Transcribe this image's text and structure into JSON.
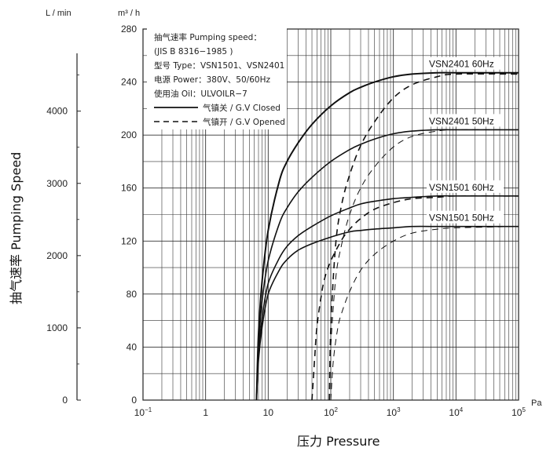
{
  "chart_data": {
    "type": "line",
    "x_scale": "log",
    "xlim": [
      0.1,
      100000
    ],
    "ylim": [
      0,
      280
    ],
    "grid": true,
    "x_unit": "Pa",
    "xlabel": "压力 Pressure",
    "ylabel": "抽气速率 Pumping Speed",
    "y_unit_left": "L / min",
    "y_unit_right": "m³ / h",
    "x_ticks": [
      {
        "value": 0.1,
        "base": "10",
        "exp": "−1"
      },
      {
        "value": 1,
        "base": "1",
        "exp": ""
      },
      {
        "value": 10,
        "base": "10",
        "exp": ""
      },
      {
        "value": 100,
        "base": "10",
        "exp": "2"
      },
      {
        "value": 1000,
        "base": "10",
        "exp": "3"
      },
      {
        "value": 10000,
        "base": "10",
        "exp": "4"
      },
      {
        "value": 100000,
        "base": "10",
        "exp": "5"
      }
    ],
    "y_ticks_m3h": [
      0,
      40,
      80,
      120,
      160,
      200,
      240,
      280
    ],
    "y_ticks_lmin": [
      0,
      1000,
      2000,
      3000,
      4000
    ],
    "y_lmin_max": 4800,
    "legend": {
      "position": "top-left",
      "lines": [
        "抽气速率 Pumping speed：",
        "(JIS B 8316−1985 )",
        "型号 Type：VSN1501、VSN2401",
        "电源 Power：380V、50/60Hz",
        "使用油 Oil：ULVOILR−7"
      ],
      "closed_label": "气镇关 / G.V Closed",
      "opened_label": "气镇开 / G.V Opened"
    },
    "series": [
      {
        "name": "VSN2401 60Hz",
        "ballast": "closed",
        "stroke": 2.0,
        "x": [
          6.5,
          7,
          8,
          10,
          15,
          20,
          30,
          50,
          100,
          200,
          300,
          500,
          1000,
          2000,
          5000,
          10000,
          100000
        ],
        "y": [
          0,
          50,
          90,
          128,
          165,
          180,
          194,
          208,
          222,
          232,
          236,
          240,
          244,
          246,
          247,
          247,
          247
        ]
      },
      {
        "name": "VSN2401 60Hz",
        "ballast": "opened",
        "stroke": 1.6,
        "x": [
          95,
          100,
          120,
          150,
          200,
          300,
          500,
          1000,
          2000,
          5000,
          10000,
          100000
        ],
        "y": [
          0,
          55,
          118,
          148,
          170,
          192,
          210,
          228,
          238,
          244,
          246,
          246
        ]
      },
      {
        "name": "VSN2401 50Hz",
        "ballast": "closed",
        "stroke": 1.6,
        "x": [
          6.5,
          7,
          8,
          10,
          15,
          20,
          30,
          50,
          100,
          200,
          300,
          500,
          1000,
          2000,
          5000,
          10000,
          100000
        ],
        "y": [
          0,
          40,
          75,
          105,
          133,
          145,
          157,
          168,
          180,
          189,
          193,
          197,
          201,
          203,
          204,
          204,
          204
        ]
      },
      {
        "name": "VSN2401 50Hz",
        "ballast": "opened",
        "stroke": 1.0,
        "x": [
          95,
          100,
          120,
          150,
          200,
          300,
          500,
          1000,
          2000,
          5000,
          10000,
          100000
        ],
        "y": [
          0,
          40,
          92,
          118,
          140,
          160,
          176,
          191,
          199,
          203,
          204,
          204
        ]
      },
      {
        "name": "VSN1501 60Hz",
        "ballast": "closed",
        "stroke": 1.6,
        "x": [
          6.5,
          7,
          8,
          10,
          15,
          20,
          30,
          50,
          100,
          200,
          300,
          500,
          1000,
          2000,
          5000,
          10000,
          100000
        ],
        "y": [
          0,
          35,
          62,
          88,
          107,
          116,
          124,
          131,
          139,
          145,
          148,
          150,
          152,
          153,
          154,
          154,
          154
        ]
      },
      {
        "name": "VSN1501 60Hz",
        "ballast": "opened",
        "stroke": 1.6,
        "x": [
          50,
          55,
          60,
          70,
          80,
          100,
          150,
          200,
          300,
          500,
          1000,
          2000,
          5000,
          10000,
          100000
        ],
        "y": [
          0,
          30,
          55,
          78,
          92,
          105,
          121,
          129,
          137,
          144,
          149,
          152,
          153,
          154,
          154
        ]
      },
      {
        "name": "VSN1501 50Hz",
        "ballast": "closed",
        "stroke": 1.6,
        "x": [
          6.5,
          7,
          8,
          10,
          15,
          20,
          30,
          50,
          100,
          200,
          300,
          500,
          1000,
          2000,
          5000,
          10000,
          100000
        ],
        "y": [
          0,
          30,
          55,
          80,
          98,
          106,
          113,
          118,
          123,
          127,
          128,
          129,
          130,
          131,
          131,
          131,
          131
        ]
      },
      {
        "name": "VSN1501 50Hz",
        "ballast": "opened",
        "stroke": 1.0,
        "x": [
          100,
          110,
          130,
          150,
          200,
          300,
          500,
          1000,
          2000,
          5000,
          10000,
          100000
        ],
        "y": [
          0,
          30,
          55,
          66,
          82,
          98,
          110,
          120,
          126,
          129,
          130,
          131
        ]
      }
    ]
  }
}
